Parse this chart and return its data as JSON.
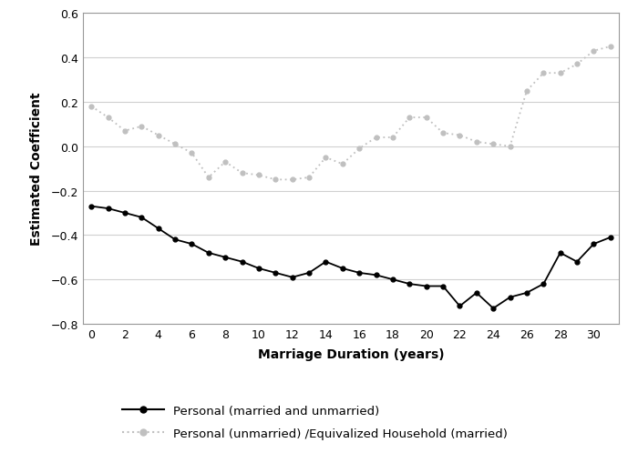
{
  "x": [
    0,
    1,
    2,
    3,
    4,
    5,
    6,
    7,
    8,
    9,
    10,
    11,
    12,
    13,
    14,
    15,
    16,
    17,
    18,
    19,
    20,
    21,
    22,
    23,
    24,
    25,
    26,
    27,
    28,
    29,
    30,
    31
  ],
  "series1": [
    -0.27,
    -0.28,
    -0.3,
    -0.32,
    -0.37,
    -0.42,
    -0.44,
    -0.48,
    -0.5,
    -0.52,
    -0.55,
    -0.57,
    -0.59,
    -0.57,
    -0.52,
    -0.55,
    -0.57,
    -0.58,
    -0.6,
    -0.62,
    -0.63,
    -0.63,
    -0.72,
    -0.66,
    -0.73,
    -0.68,
    -0.66,
    -0.62,
    -0.48,
    -0.52,
    -0.44,
    -0.41
  ],
  "series2": [
    0.18,
    0.13,
    0.07,
    0.09,
    0.05,
    0.01,
    -0.03,
    -0.14,
    -0.07,
    -0.12,
    -0.13,
    -0.15,
    -0.15,
    -0.14,
    -0.05,
    -0.08,
    -0.01,
    0.04,
    0.04,
    0.13,
    0.13,
    0.06,
    0.05,
    0.02,
    0.01,
    0.0,
    0.25,
    0.33,
    0.33,
    0.37,
    0.43,
    0.45
  ],
  "series1_color": "#000000",
  "series2_color": "#c0c0c0",
  "xlabel": "Marriage Duration (years)",
  "ylabel": "Estimated Coefficient",
  "ylim": [
    -0.8,
    0.6
  ],
  "xlim": [
    -0.5,
    31.5
  ],
  "yticks": [
    -0.8,
    -0.6,
    -0.4,
    -0.2,
    0.0,
    0.2,
    0.4,
    0.6
  ],
  "xticks": [
    0,
    2,
    4,
    6,
    8,
    10,
    12,
    14,
    16,
    18,
    20,
    22,
    24,
    26,
    28,
    30
  ],
  "legend1": "Personal (married and unmarried)",
  "legend2": "Personal (unmarried) /Equivalized Household (married)",
  "background_color": "#ffffff",
  "grid_color": "#d0d0d0"
}
